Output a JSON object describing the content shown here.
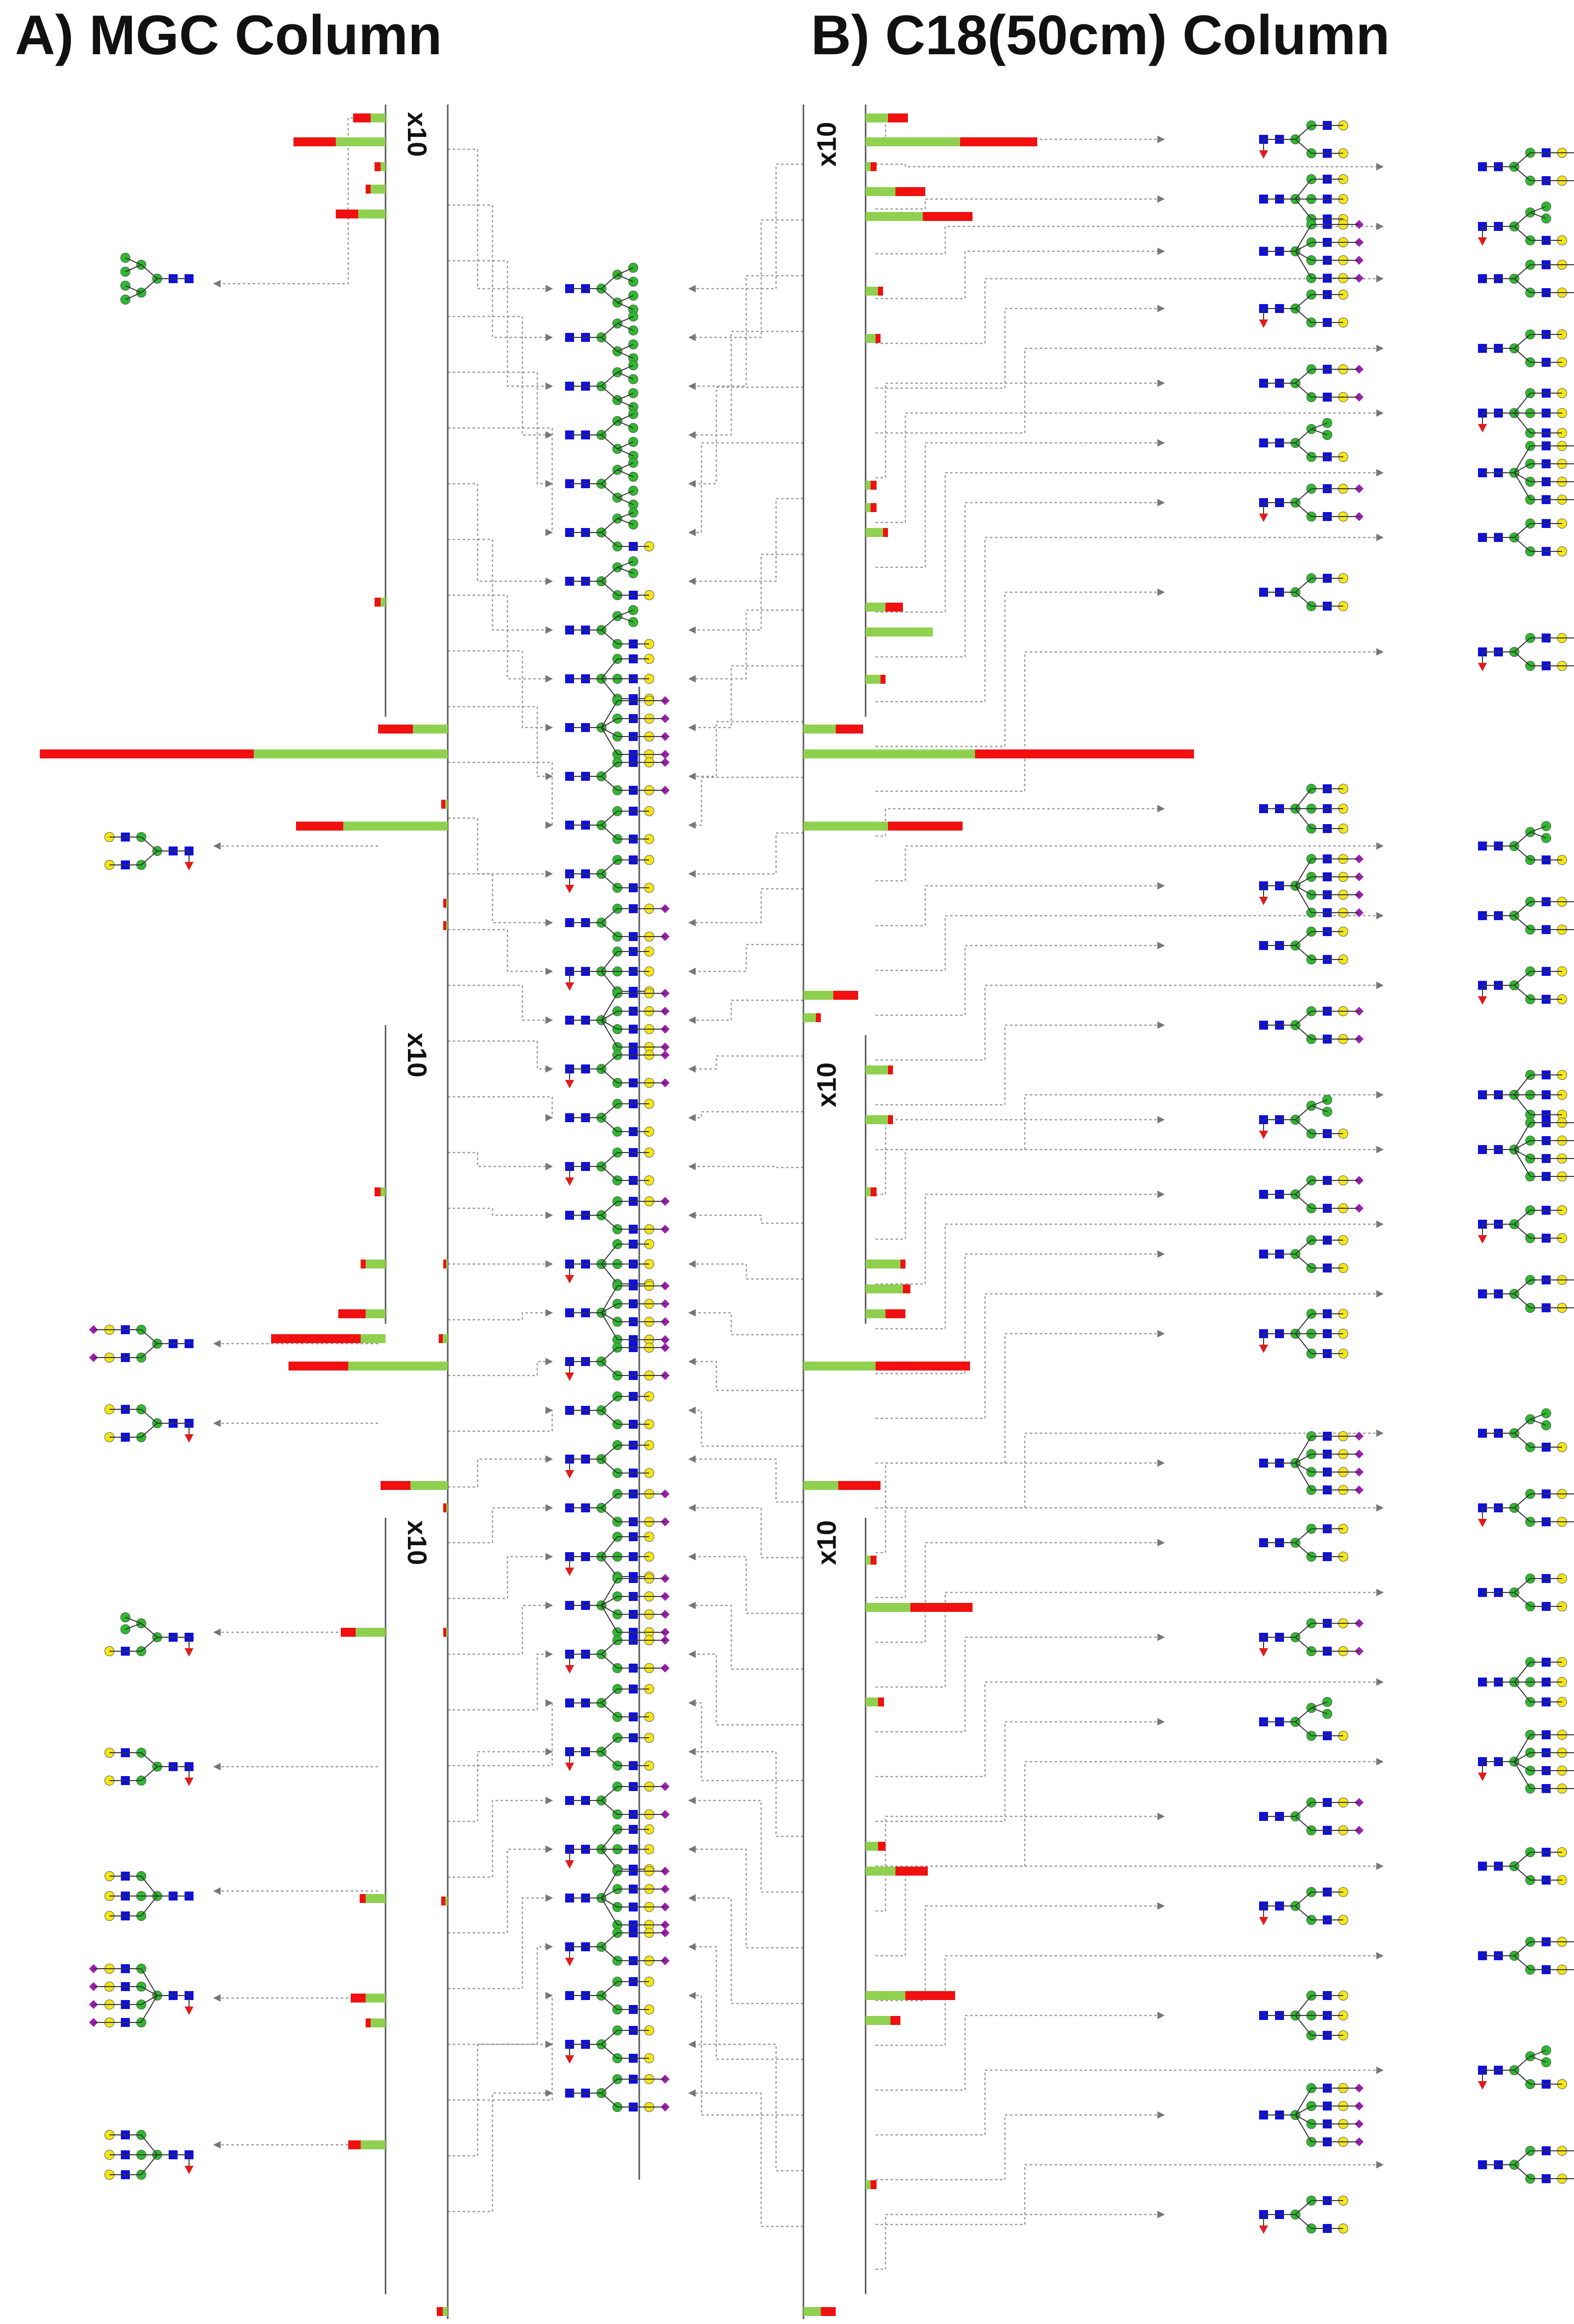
{
  "titles": {
    "a": "A) MGC Column",
    "b": "B) C18(50cm) Column"
  },
  "scale_label": "x10",
  "colors": {
    "hexnac_blue": "#1010d8",
    "hexose_green": "#2eb82e",
    "galactose_yellow": "#f5e612",
    "fucose_red": "#e41a1a",
    "sialic_purple": "#9b1fae",
    "bar_green": "#8fd14f",
    "bar_red": "#f01010",
    "connector_grey": "#9a9a9a"
  },
  "legend_icons": [
    "blue-square-icon",
    "green-circle-icon",
    "yellow-circle-icon",
    "red-triangle-icon",
    "purple-diamond-icon"
  ]
}
